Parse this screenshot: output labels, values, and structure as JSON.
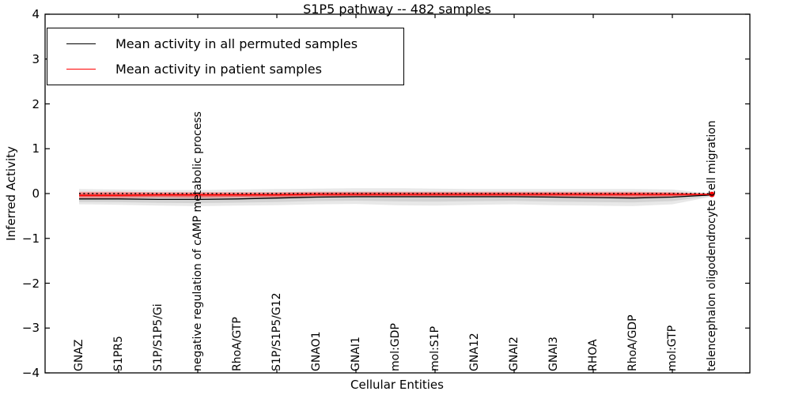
{
  "figure": {
    "title": "S1P5 pathway -- 482 samples",
    "xlabel": "Cellular Entities",
    "ylabel": "Inferred Activity"
  },
  "legend": {
    "entries": [
      {
        "label": "Mean activity in all permuted samples",
        "color": "#000000"
      },
      {
        "label": "Mean activity in patient samples",
        "color": "#ff0000"
      }
    ]
  },
  "chart_data": {
    "type": "line",
    "title": "S1P5 pathway -- 482 samples",
    "xlabel": "Cellular Entities",
    "ylabel": "Inferred Activity",
    "ylim": [
      -4,
      4
    ],
    "grid": false,
    "legend_position": "upper left",
    "y_tick_values": [
      4,
      3,
      2,
      1,
      0,
      -1,
      -2,
      -3,
      -4
    ],
    "y_tick_labels": [
      "4",
      "3",
      "2",
      "1",
      "0",
      "−1",
      "−2",
      "−3",
      "−4"
    ],
    "x_tick_positions": [
      1,
      3,
      5,
      7,
      9,
      11,
      13,
      15
    ],
    "categories": [
      "GNAZ",
      "S1PR5",
      "S1P/S1P5/Gi",
      "negative regulation of cAMP metabolic process",
      "RhoA/GTP",
      "S1P/S1P5/G12",
      "GNAO1",
      "GNAI1",
      "mol:GDP",
      "mol:S1P",
      "GNA12",
      "GNAI2",
      "GNAI3",
      "RHOA",
      "RhoA/GDP",
      "mol:GTP",
      "telencephalon oligodendrocyte cell migration"
    ],
    "zero_line": {
      "y": 0,
      "style": "dotted",
      "color": "#000000"
    },
    "series": [
      {
        "name": "Mean activity in all permuted samples",
        "color": "#000000",
        "band_fill": "#000000",
        "values": [
          -0.12,
          -0.12,
          -0.13,
          -0.13,
          -0.12,
          -0.1,
          -0.08,
          -0.07,
          -0.07,
          -0.07,
          -0.07,
          -0.07,
          -0.08,
          -0.09,
          -0.1,
          -0.08,
          -0.03
        ],
        "band_upper": [
          0.1,
          0.09,
          0.08,
          0.08,
          0.09,
          0.1,
          0.11,
          0.12,
          0.12,
          0.11,
          0.1,
          0.1,
          0.1,
          0.1,
          0.1,
          0.09,
          0.0
        ],
        "band_lower": [
          -0.24,
          -0.25,
          -0.27,
          -0.28,
          -0.27,
          -0.26,
          -0.24,
          -0.23,
          -0.26,
          -0.27,
          -0.25,
          -0.24,
          -0.26,
          -0.27,
          -0.28,
          -0.24,
          -0.07
        ]
      },
      {
        "name": "Mean activity in patient samples",
        "color": "#ff0000",
        "band_fill": "#ff0000",
        "values": [
          -0.04,
          -0.04,
          -0.03,
          -0.03,
          -0.03,
          -0.03,
          -0.02,
          -0.02,
          -0.02,
          -0.02,
          -0.02,
          -0.02,
          -0.02,
          -0.02,
          -0.02,
          -0.02,
          -0.02
        ],
        "band_upper": [
          0.04,
          0.04,
          0.03,
          0.03,
          0.03,
          0.03,
          0.04,
          0.04,
          0.04,
          0.04,
          0.04,
          0.04,
          0.04,
          0.04,
          0.04,
          0.03,
          0.0
        ],
        "band_lower": [
          -0.1,
          -0.1,
          -0.09,
          -0.1,
          -0.09,
          -0.09,
          -0.08,
          -0.08,
          -0.08,
          -0.08,
          -0.08,
          -0.08,
          -0.08,
          -0.08,
          -0.09,
          -0.08,
          -0.04
        ]
      }
    ],
    "end_marker": {
      "series": 1,
      "index": 16,
      "radius": 3.5
    }
  }
}
